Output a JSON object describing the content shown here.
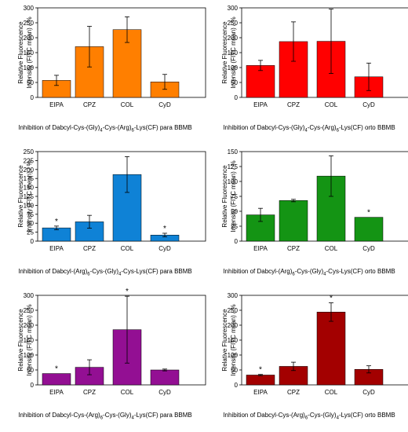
{
  "y_label_line1": "Relative Fluorescence",
  "y_label_line2": "Intensity (FITC mean) / %",
  "chart_data": [
    {
      "type": "bar",
      "color": "#ff7f00",
      "categories": [
        "EIPA",
        "CPZ",
        "COL",
        "CyD"
      ],
      "values": [
        57,
        170,
        227,
        52
      ],
      "errors": [
        17,
        68,
        43,
        25
      ],
      "significance": [
        "",
        "",
        "",
        ""
      ],
      "ylim": [
        0,
        300
      ],
      "yticks": [
        0,
        50,
        100,
        150,
        200,
        250,
        300
      ],
      "ylabel": "Relative Fluorescence Intensity (FITC mean) / %",
      "xlabel_parts": {
        "pre": "Inhibition of Dabcyl-Cys-(Gly)",
        "sub1": "4",
        "mid": "-Cys-(Arg)",
        "sub2": "6",
        "post": "-Lys(CF) para BBMB"
      }
    },
    {
      "type": "bar",
      "color": "#ff0000",
      "categories": [
        "EIPA",
        "CPZ",
        "COL",
        "CyD"
      ],
      "values": [
        107,
        187,
        188,
        69
      ],
      "errors": [
        17,
        66,
        108,
        46
      ],
      "significance": [
        "",
        "",
        "",
        ""
      ],
      "ylim": [
        0,
        300
      ],
      "yticks": [
        0,
        50,
        100,
        150,
        200,
        250,
        300
      ],
      "ylabel": "Relative Fluorescence Intensity (FITC mean) / %",
      "xlabel_parts": {
        "pre": "Inhibition of Dabcyl-Cys-(Gly)",
        "sub1": "4",
        "mid": "-Cys-(Arg)",
        "sub2": "6",
        "post": "-Lys(CF) orto BBMB"
      }
    },
    {
      "type": "bar",
      "color": "#0f82d6",
      "categories": [
        "EIPA",
        "CPZ",
        "COL",
        "CyD"
      ],
      "values": [
        37,
        54,
        186,
        17
      ],
      "errors": [
        5,
        18,
        50,
        5
      ],
      "significance": [
        "*",
        "",
        "",
        "*"
      ],
      "ylim": [
        0,
        250
      ],
      "yticks": [
        0,
        25,
        50,
        75,
        100,
        125,
        150,
        175,
        200,
        225,
        250
      ],
      "ylabel": "Relative Fluorescence Intensity (FITC mean) / %",
      "xlabel_parts": {
        "pre": "Inhibition of Dabcyl-(Arg)",
        "sub1": "6",
        "mid": "-Cys-(Gly)",
        "sub2": "4",
        "post": "-Cys-Lys(CF) para BBMB"
      }
    },
    {
      "type": "bar",
      "color": "#149414",
      "categories": [
        "EIPA",
        "CPZ",
        "COL",
        "CyD"
      ],
      "values": [
        44,
        68,
        109,
        40
      ],
      "errors": [
        11,
        2,
        34,
        0
      ],
      "significance": [
        "",
        "",
        "",
        "*"
      ],
      "ylim": [
        0,
        150
      ],
      "yticks": [
        0,
        25,
        50,
        75,
        100,
        125,
        150
      ],
      "ylabel": "Relative Fluorescence Intensity (FITC mean) / %",
      "xlabel_parts": {
        "pre": "Inhibition of Dabcyl-(Arg)",
        "sub1": "6",
        "mid": "-Cys-(Gly)",
        "sub2": "4",
        "post": "-Cys-Lys(CF) orto BBMB"
      }
    },
    {
      "type": "bar",
      "color": "#930f93",
      "categories": [
        "EIPA",
        "CPZ",
        "COL",
        "CyD"
      ],
      "values": [
        38,
        59,
        185,
        50
      ],
      "errors": [
        0,
        25,
        112,
        3
      ],
      "significance": [
        "*",
        "",
        "*",
        ""
      ],
      "ylim": [
        0,
        300
      ],
      "yticks": [
        0,
        50,
        100,
        150,
        200,
        250,
        300
      ],
      "ylabel": "Relative Fluorescence Intensity (FITC mean) / %",
      "xlabel_parts": {
        "pre": "Inhibition of Dabcyl-Cys-(Arg)",
        "sub1": "6",
        "mid": "-Cys-(Gly)",
        "sub2": "4",
        "post": "-Lys(CF) para BBMB"
      }
    },
    {
      "type": "bar",
      "color": "#a30000",
      "categories": [
        "EIPA",
        "CPZ",
        "COL",
        "CyD"
      ],
      "values": [
        33,
        62,
        244,
        52
      ],
      "errors": [
        2,
        14,
        31,
        12
      ],
      "significance": [
        "*",
        "",
        "*",
        ""
      ],
      "ylim": [
        0,
        300
      ],
      "yticks": [
        0,
        50,
        100,
        150,
        200,
        250,
        300
      ],
      "ylabel": "Relative Fluorescence Intensity (FITC mean) / %",
      "xlabel_parts": {
        "pre": "Inhibition of Dabcyl-Cys-(Arg)",
        "sub1": "6",
        "mid": "-Cys-(Gly)",
        "sub2": "4",
        "post": "-Lys(CF) orto BBMB"
      }
    }
  ]
}
